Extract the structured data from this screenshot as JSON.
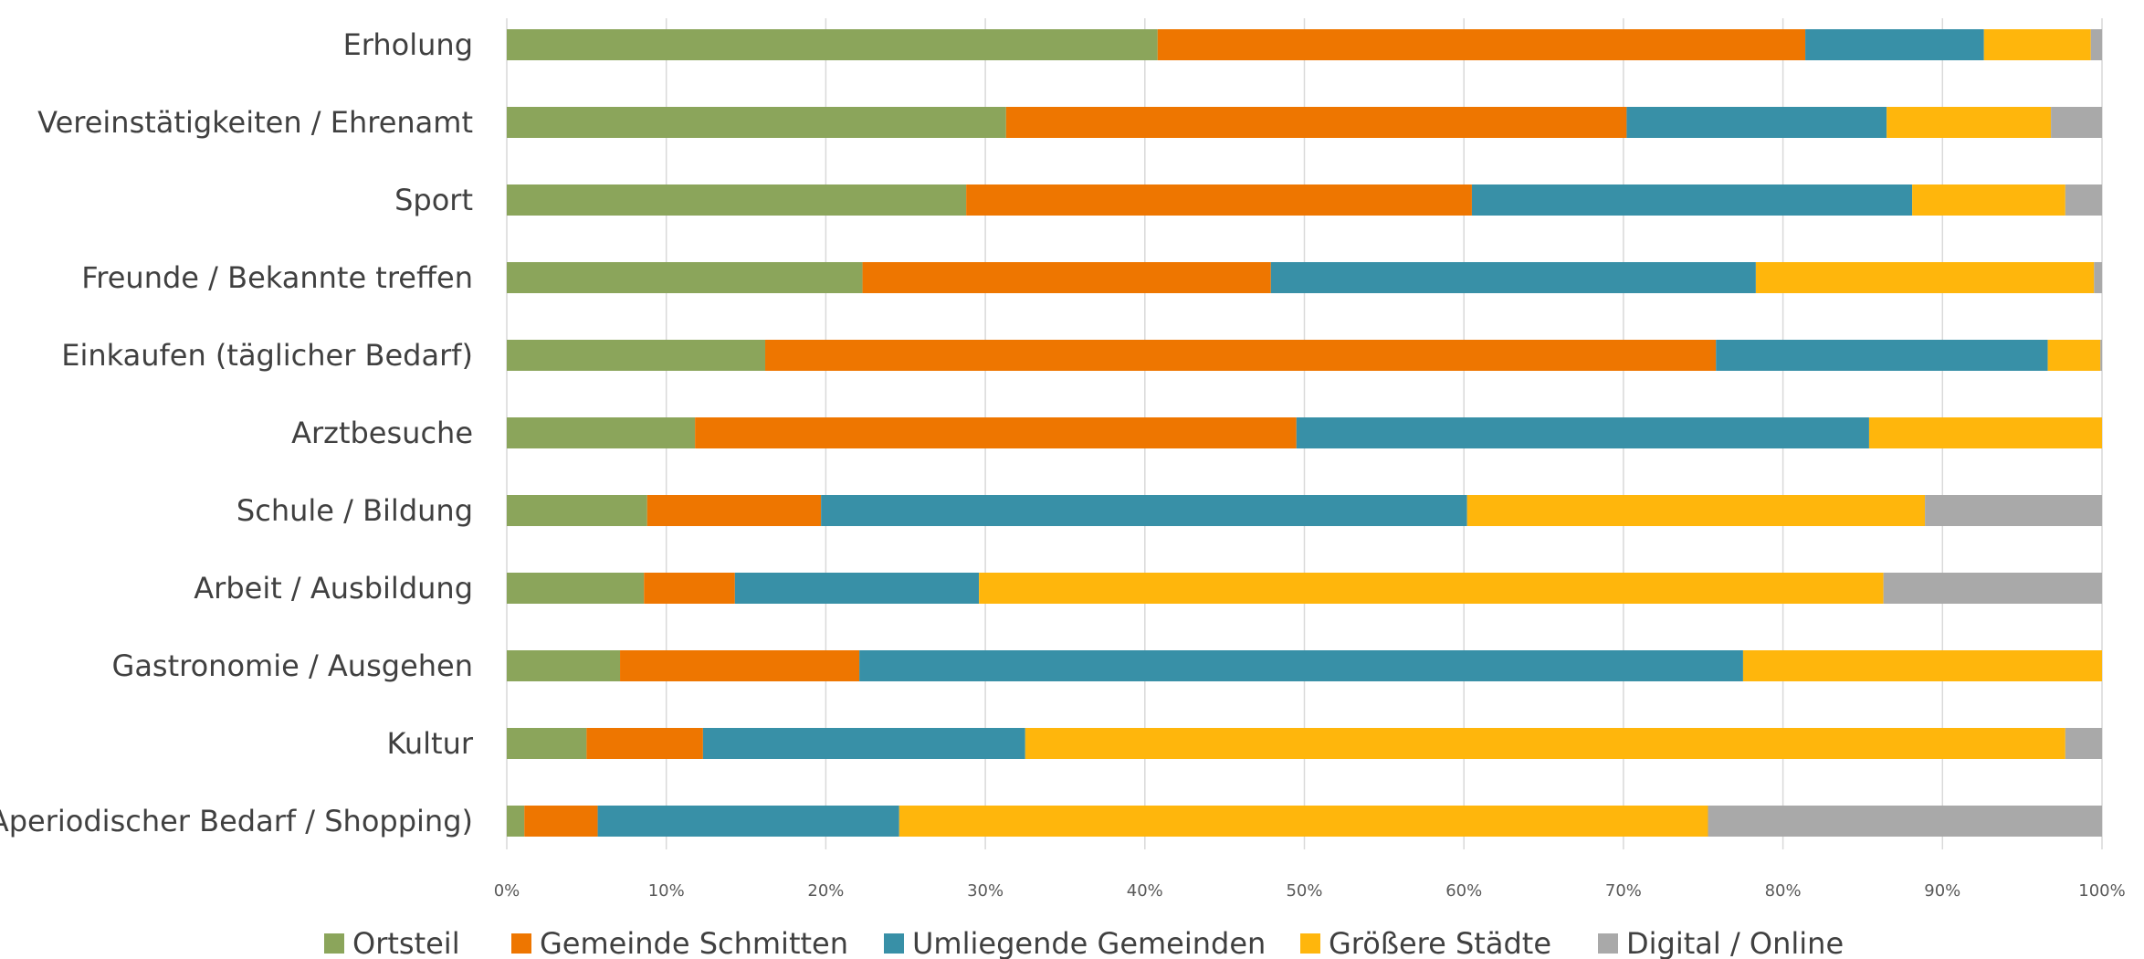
{
  "chart_data": {
    "type": "bar",
    "orientation": "horizontal",
    "stacked": "percent",
    "categories": [
      "Erholung",
      "Vereinstätigkeiten / Ehrenamt",
      "Sport",
      "Freunde / Bekannte treffen",
      "Einkaufen (täglicher Bedarf)",
      "Arztbesuche",
      "Schule / Bildung",
      "Arbeit / Ausbildung",
      "Gastronomie / Ausgehen",
      "Kultur",
      "Aperiodischer Bedarf / Shopping)"
    ],
    "series": [
      {
        "name": "Ortsteil",
        "color": "#8BA55B",
        "values": [
          40.8,
          31.3,
          28.8,
          22.3,
          16.2,
          11.8,
          8.8,
          8.6,
          7.1,
          5.0,
          1.1
        ]
      },
      {
        "name": "Gemeinde Schmitten",
        "color": "#EE7600",
        "values": [
          40.6,
          38.9,
          31.7,
          25.6,
          59.6,
          37.7,
          10.9,
          5.7,
          15.0,
          7.3,
          4.6
        ]
      },
      {
        "name": "Umliegende Gemeinden",
        "color": "#3890A7",
        "values": [
          11.2,
          16.3,
          27.6,
          30.4,
          20.8,
          35.9,
          40.5,
          15.3,
          55.4,
          20.2,
          18.9
        ]
      },
      {
        "name": "Größere Städte",
        "color": "#FFB60C",
        "values": [
          6.7,
          10.3,
          9.6,
          21.2,
          3.3,
          14.6,
          28.7,
          56.7,
          22.5,
          65.2,
          50.7
        ]
      },
      {
        "name": "Digital / Online",
        "color": "#A9A9A9",
        "values": [
          0.7,
          3.2,
          2.3,
          0.5,
          0.1,
          0.0,
          11.1,
          13.7,
          0.0,
          2.3,
          24.7
        ]
      }
    ],
    "x_ticks": [
      "0%",
      "10%",
      "20%",
      "30%",
      "40%",
      "50%",
      "60%",
      "70%",
      "80%",
      "90%",
      "100%"
    ],
    "xlim": [
      0,
      100
    ],
    "grid": "vertical",
    "legend": "bottom"
  }
}
